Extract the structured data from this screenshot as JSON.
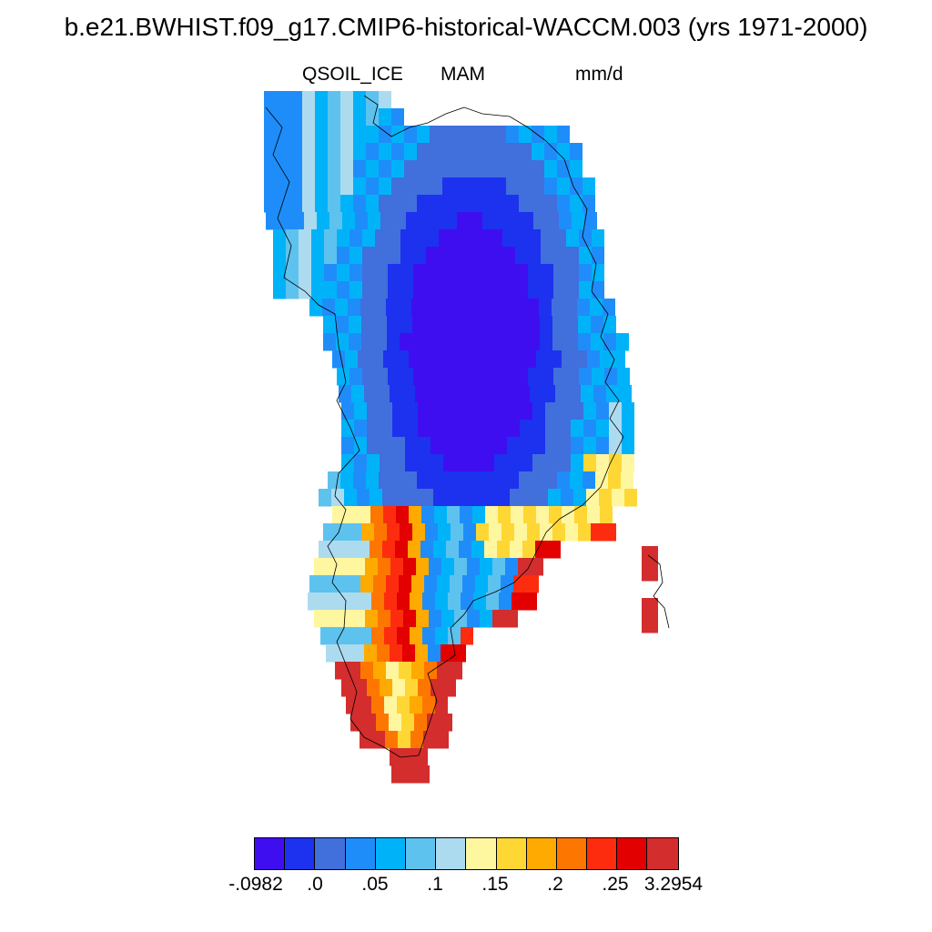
{
  "title": "b.e21.BWHIST.f09_g17.CMIP6-historical-WACCM.003 (yrs 1971-2000)",
  "subtitle": {
    "variable": "QSOIL_ICE",
    "season": "MAM",
    "units": "mm/d"
  },
  "colorbar": {
    "colors": [
      "#3f0ef0",
      "#1c32ee",
      "#416fdc",
      "#1f8df9",
      "#00b3f9",
      "#5ec2ee",
      "#acdbf0",
      "#fff6a0",
      "#fed734",
      "#feaa00",
      "#fd7700",
      "#fd2c0f",
      "#e20000",
      "#d32d2d"
    ],
    "labels": [
      "-.0982",
      ".0",
      ".05",
      ".1",
      ".15",
      ".2",
      ".25",
      "3.2954"
    ]
  },
  "map_note": "Greenland field; levels indexed 0-13 into colorbar.colors"
}
